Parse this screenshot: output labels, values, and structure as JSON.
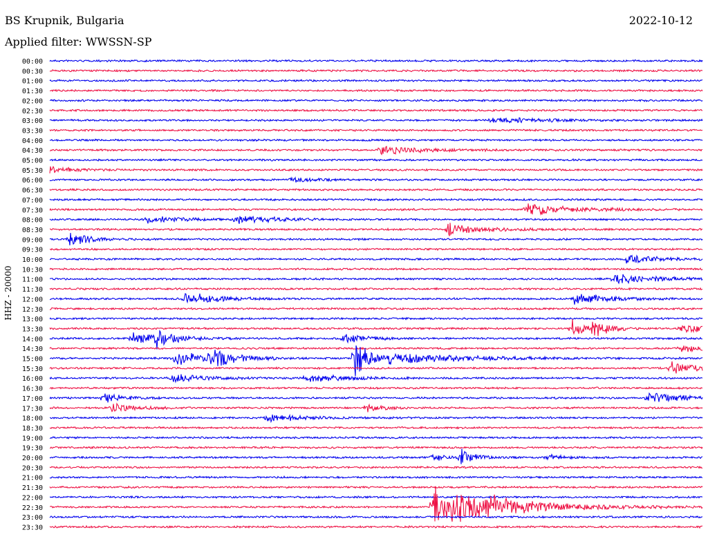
{
  "header": {
    "station": "BS Krupnik, Bulgaria",
    "date": "2022-10-12",
    "filter": "Applied filter: WWSSN-SP"
  },
  "colors": {
    "even": "#0000ee",
    "odd": "#ee1144",
    "text": "#000000"
  },
  "chart_data": {
    "type": "line",
    "ylabel": "HHZ - 20000",
    "row_labels": [
      "00:00",
      "00:30",
      "01:00",
      "01:30",
      "02:00",
      "02:30",
      "03:00",
      "03:30",
      "04:00",
      "04:30",
      "05:00",
      "05:30",
      "06:00",
      "06:30",
      "07:00",
      "07:30",
      "08:00",
      "08:30",
      "09:00",
      "09:30",
      "10:00",
      "10:30",
      "11:00",
      "11:30",
      "12:00",
      "12:30",
      "13:00",
      "13:30",
      "14:00",
      "14:30",
      "15:00",
      "15:30",
      "16:00",
      "16:30",
      "17:00",
      "17:30",
      "18:00",
      "18:30",
      "19:00",
      "19:30",
      "20:00",
      "20:30",
      "21:00",
      "21:30",
      "22:00",
      "22:30",
      "23:00",
      "23:30"
    ],
    "x_range_minutes": [
      0,
      30
    ],
    "bursts": [
      {
        "row": 6,
        "t": 20.3,
        "amp": 6,
        "dur": 2.0
      },
      {
        "row": 9,
        "t": 15.1,
        "amp": 8,
        "dur": 2.0
      },
      {
        "row": 11,
        "t": 0.0,
        "amp": 6,
        "dur": 1.0
      },
      {
        "row": 12,
        "t": 11.0,
        "amp": 5,
        "dur": 1.0
      },
      {
        "row": 15,
        "t": 21.9,
        "amp": 10,
        "dur": 2.0
      },
      {
        "row": 16,
        "t": 4.5,
        "amp": 6,
        "dur": 1.5
      },
      {
        "row": 16,
        "t": 8.6,
        "amp": 8,
        "dur": 1.5
      },
      {
        "row": 17,
        "t": 18.5,
        "amp": 6,
        "dur": 2.0
      },
      {
        "row": 17,
        "t": 18.3,
        "amp": 14,
        "dur": 0.4
      },
      {
        "row": 18,
        "t": 0.9,
        "amp": 18,
        "dur": 0.7
      },
      {
        "row": 20,
        "t": 26.5,
        "amp": 7,
        "dur": 1.5
      },
      {
        "row": 22,
        "t": 25.9,
        "amp": 8,
        "dur": 2.0
      },
      {
        "row": 24,
        "t": 6.2,
        "amp": 10,
        "dur": 1.5
      },
      {
        "row": 24,
        "t": 24.1,
        "amp": 10,
        "dur": 1.5
      },
      {
        "row": 27,
        "t": 24.0,
        "amp": 14,
        "dur": 0.6
      },
      {
        "row": 27,
        "t": 25.0,
        "amp": 26,
        "dur": 0.5
      },
      {
        "row": 27,
        "t": 29.0,
        "amp": 8,
        "dur": 1.5
      },
      {
        "row": 28,
        "t": 3.8,
        "amp": 10,
        "dur": 1.5
      },
      {
        "row": 28,
        "t": 4.9,
        "amp": 16,
        "dur": 0.6
      },
      {
        "row": 28,
        "t": 13.5,
        "amp": 8,
        "dur": 1.0
      },
      {
        "row": 29,
        "t": 29.0,
        "amp": 6,
        "dur": 1.5
      },
      {
        "row": 30,
        "t": 5.7,
        "amp": 12,
        "dur": 1.5
      },
      {
        "row": 30,
        "t": 7.4,
        "amp": 14,
        "dur": 1.0
      },
      {
        "row": 30,
        "t": 14.0,
        "amp": 36,
        "dur": 0.7
      },
      {
        "row": 30,
        "t": 15.5,
        "amp": 10,
        "dur": 3.0
      },
      {
        "row": 31,
        "t": 28.5,
        "amp": 10,
        "dur": 1.5
      },
      {
        "row": 32,
        "t": 5.5,
        "amp": 8,
        "dur": 1.5
      },
      {
        "row": 32,
        "t": 11.8,
        "amp": 8,
        "dur": 1.5
      },
      {
        "row": 34,
        "t": 2.5,
        "amp": 10,
        "dur": 0.8
      },
      {
        "row": 34,
        "t": 27.5,
        "amp": 10,
        "dur": 1.5
      },
      {
        "row": 35,
        "t": 2.8,
        "amp": 8,
        "dur": 1.0
      },
      {
        "row": 35,
        "t": 14.6,
        "amp": 8,
        "dur": 0.6
      },
      {
        "row": 36,
        "t": 10.0,
        "amp": 7,
        "dur": 1.5
      },
      {
        "row": 40,
        "t": 18.9,
        "amp": 14,
        "dur": 0.6
      },
      {
        "row": 40,
        "t": 17.6,
        "amp": 6,
        "dur": 0.6
      },
      {
        "row": 40,
        "t": 22.8,
        "amp": 5,
        "dur": 0.8
      },
      {
        "row": 45,
        "t": 17.6,
        "amp": 40,
        "dur": 0.8
      },
      {
        "row": 45,
        "t": 18.6,
        "amp": 30,
        "dur": 1.5
      },
      {
        "row": 45,
        "t": 20.0,
        "amp": 10,
        "dur": 4.0
      }
    ]
  }
}
